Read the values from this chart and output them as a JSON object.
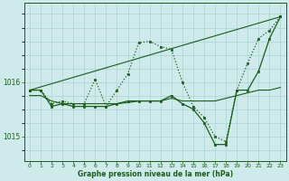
{
  "xlabel": "Graphe pression niveau de la mer (hPa)",
  "background_color": "#ceeaea",
  "grid_color": "#aad4d4",
  "line_color": "#1a5c1a",
  "x_ticks": [
    0,
    1,
    2,
    3,
    4,
    5,
    6,
    7,
    8,
    9,
    10,
    11,
    12,
    13,
    14,
    15,
    16,
    17,
    18,
    19,
    20,
    21,
    22,
    23
  ],
  "ylim": [
    1014.55,
    1017.45
  ],
  "yticks": [
    1015,
    1016
  ],
  "series": [
    {
      "x": [
        0,
        1,
        2,
        3,
        4,
        5,
        6,
        7,
        8,
        9,
        10,
        11,
        12,
        13,
        14,
        15,
        16,
        17,
        18,
        19,
        20,
        21,
        22,
        23
      ],
      "y": [
        1015.85,
        1015.85,
        1015.6,
        1015.65,
        1015.6,
        1015.6,
        1016.05,
        1015.55,
        1015.85,
        1016.15,
        1016.72,
        1016.75,
        1016.65,
        1016.6,
        1016.0,
        1015.55,
        1015.35,
        1015.0,
        1014.9,
        1015.85,
        1016.35,
        1016.8,
        1016.95,
        1017.2
      ],
      "marker": "s",
      "linestyle": ":"
    },
    {
      "x": [
        0,
        1,
        2,
        3,
        4,
        5,
        6,
        7,
        8,
        9,
        10,
        11,
        12,
        13,
        14,
        15,
        16,
        17,
        18,
        19,
        20,
        21,
        22,
        23
      ],
      "y": [
        1015.85,
        1015.85,
        1015.55,
        1015.6,
        1015.55,
        1015.55,
        1015.55,
        1015.55,
        1015.6,
        1015.65,
        1015.65,
        1015.65,
        1015.65,
        1015.75,
        1015.6,
        1015.5,
        1015.25,
        1014.85,
        1014.85,
        1015.85,
        1015.85,
        1016.2,
        1016.8,
        1017.2
      ],
      "marker": "s",
      "linestyle": "-"
    },
    {
      "x": [
        0,
        1,
        2,
        3,
        4,
        5,
        6,
        7,
        8,
        9,
        10,
        11,
        12,
        13,
        14,
        15,
        16,
        17,
        18,
        19,
        20,
        21,
        22,
        23
      ],
      "y": [
        1015.75,
        1015.75,
        1015.65,
        1015.6,
        1015.6,
        1015.6,
        1015.6,
        1015.6,
        1015.6,
        1015.62,
        1015.65,
        1015.65,
        1015.65,
        1015.7,
        1015.65,
        1015.65,
        1015.65,
        1015.65,
        1015.7,
        1015.75,
        1015.8,
        1015.85,
        1015.85,
        1015.9
      ],
      "marker": null,
      "linestyle": "-"
    },
    {
      "x": [
        0,
        23
      ],
      "y": [
        1015.85,
        1017.2
      ],
      "marker": null,
      "linestyle": "-"
    }
  ]
}
